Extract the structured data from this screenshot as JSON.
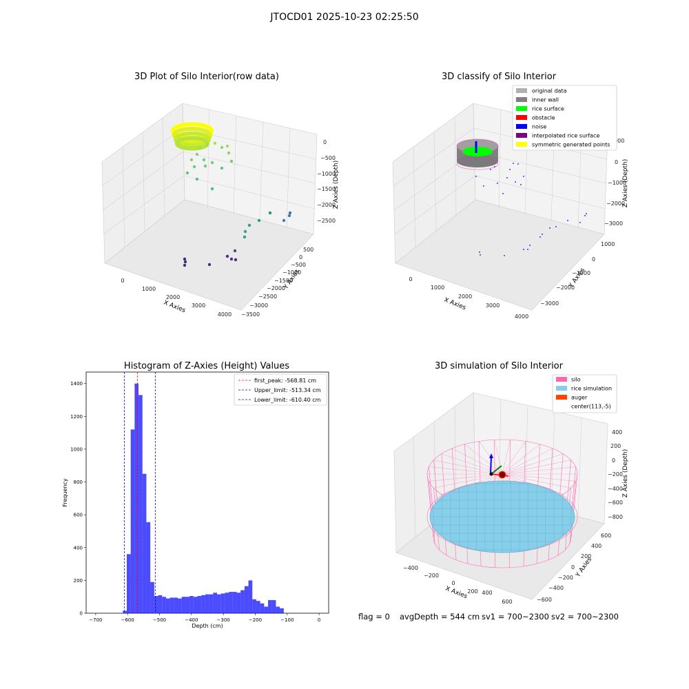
{
  "suptitle": "JTOCD01 2025-10-23 02:25:50",
  "panel1": {
    "title": "3D Plot of Silo Interior(row data)",
    "xlabel": "X Axies",
    "ylabel": "Y Axies",
    "zlabel": "Z Axies (Depth)",
    "xticks": [
      "0",
      "1000",
      "2000",
      "3000",
      "4000"
    ],
    "yticks": [
      "500",
      "0",
      "−500",
      "−1000",
      "−1500",
      "−2000",
      "−2500",
      "−3000",
      "−3500"
    ],
    "zticks": [
      "0",
      "−500",
      "−1000",
      "−1500",
      "−2000",
      "−2500"
    ]
  },
  "panel2": {
    "title": "3D classify of Silo Interior",
    "xlabel": "X Axies",
    "ylabel": "Y Axies",
    "zlabel": "Z Axies (Depth)",
    "xticks": [
      "0",
      "1000",
      "2000",
      "3000",
      "4000"
    ],
    "yticks": [
      "1000",
      "0",
      "−1000",
      "−2000",
      "−3000"
    ],
    "zticks": [
      "1000",
      "0",
      "−1000",
      "−2000",
      "−3000"
    ],
    "legend": [
      {
        "label": "original data",
        "color": "#b0b0b0"
      },
      {
        "label": "inner wall",
        "color": "#808080"
      },
      {
        "label": "rice surface",
        "color": "#00ff00"
      },
      {
        "label": "obstacle",
        "color": "#ff0000"
      },
      {
        "label": "noise",
        "color": "#0000ff"
      },
      {
        "label": "interpolated rice surface",
        "color": "#800080"
      },
      {
        "label": "symmetric generated points",
        "color": "#ffff00"
      }
    ]
  },
  "panel4": {
    "title": "3D simulation of Silo Interior",
    "xlabel": "X Axies",
    "ylabel": "Y Axies",
    "zlabel": "Z Axies (Depth)",
    "xticks": [
      "−400",
      "−200",
      "0",
      "200",
      "400",
      "600"
    ],
    "yticks": [
      "600",
      "400",
      "200",
      "0",
      "−200",
      "−400",
      "−600"
    ],
    "zticks": [
      "400",
      "200",
      "0",
      "−200",
      "−400",
      "−600",
      "−800"
    ],
    "legend": [
      {
        "label": "silo",
        "color": "#ff69b4"
      },
      {
        "label": "rice simulation",
        "color": "#87ceeb"
      },
      {
        "label": "auger",
        "color": "#ff4500"
      },
      {
        "label": "center(113,-5)",
        "color": "none"
      }
    ]
  },
  "stats": {
    "flag": "flag = 0",
    "avg": "avgDepth = 544 cm",
    "sv1": "sv1 = 700~2300",
    "sv2": "sv2 = 700~2300"
  },
  "chart_data": {
    "type": "bar",
    "title": "Histogram of Z-Axies (Height) Values",
    "xlabel": "Depth (cm)",
    "ylabel": "Frequency",
    "xlim": [
      -730,
      30
    ],
    "ylim": [
      0,
      1470
    ],
    "xticks": [
      -700,
      -600,
      -500,
      -400,
      -300,
      -200,
      -100,
      0
    ],
    "yticks": [
      0,
      200,
      400,
      600,
      800,
      1000,
      1200,
      1400
    ],
    "bar_color": "#0000ff",
    "bin_start": -615,
    "bin_width": 12.3,
    "values": [
      15,
      360,
      1120,
      1400,
      1330,
      850,
      555,
      190,
      105,
      110,
      100,
      90,
      95,
      95,
      90,
      100,
      100,
      105,
      100,
      105,
      110,
      115,
      115,
      125,
      115,
      120,
      125,
      130,
      130,
      125,
      140,
      165,
      200,
      85,
      75,
      60,
      40,
      80,
      80,
      40,
      30
    ],
    "vlines": [
      {
        "label": "first_peak: -568.81 cm",
        "x": -568.81,
        "color": "#ff0000"
      },
      {
        "label": "Upper_limit: -513.34 cm",
        "x": -513.34,
        "color": "#0000ff"
      },
      {
        "label": "Lower_limit: -610.40 cm",
        "x": -610.4,
        "color": "#0000ff"
      }
    ]
  }
}
